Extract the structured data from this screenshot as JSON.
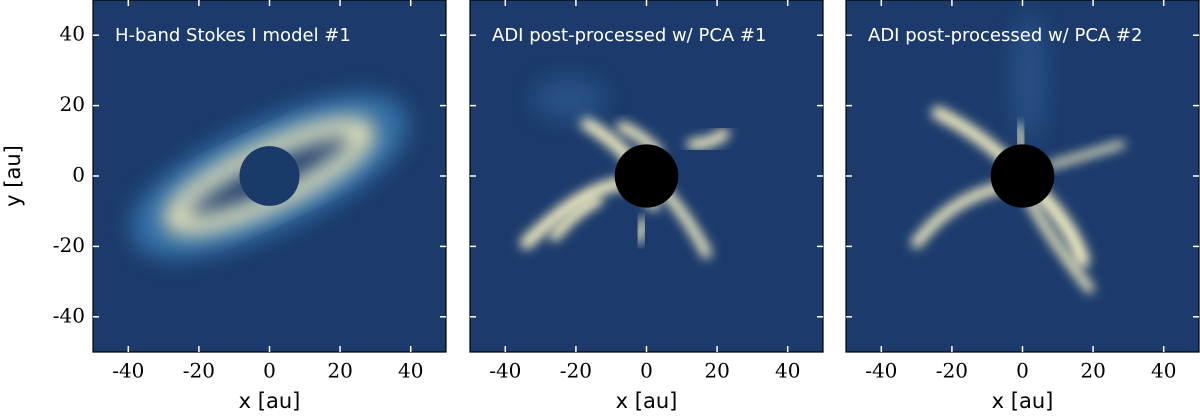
{
  "chart_data": [
    {
      "type": "image",
      "title": "H-band Stokes I model #1",
      "xlabel": "x [au]",
      "ylabel": "y [au]",
      "xlim": [
        -50,
        50
      ],
      "ylim": [
        -50,
        50
      ],
      "xticks": [
        -40,
        -20,
        0,
        20,
        40
      ],
      "yticks": [
        -40,
        -20,
        0,
        20,
        40
      ]
    },
    {
      "type": "image",
      "title": "ADI post-processed w/ PCA #1",
      "xlabel": "x [au]",
      "xlim": [
        -50,
        50
      ],
      "ylim": [
        -50,
        50
      ],
      "xticks": [
        -40,
        -20,
        0,
        20,
        40
      ],
      "yticks": [
        -40,
        -20,
        0,
        20,
        40
      ]
    },
    {
      "type": "image",
      "title": "ADI post-processed w/ PCA #2",
      "xlabel": "x [au]",
      "xlim": [
        -50,
        50
      ],
      "ylim": [
        -50,
        50
      ],
      "xticks": [
        -40,
        -20,
        0,
        20,
        40
      ],
      "yticks": [
        -40,
        -20,
        0,
        20,
        40
      ]
    }
  ]
}
